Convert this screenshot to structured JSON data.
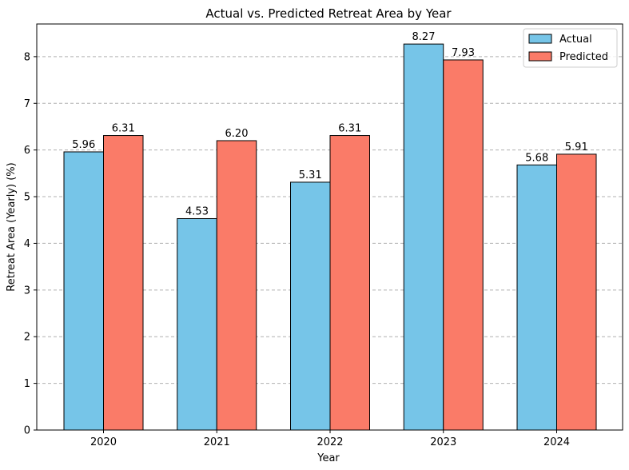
{
  "chart_data": {
    "type": "bar",
    "title": "Actual vs. Predicted Retreat Area by Year",
    "xlabel": "Year",
    "ylabel": "Retreat Area (Yearly) (%)",
    "categories": [
      "2020",
      "2021",
      "2022",
      "2023",
      "2024"
    ],
    "series": [
      {
        "name": "Actual",
        "values": [
          5.96,
          4.53,
          5.31,
          8.27,
          5.68
        ],
        "labels": [
          "5.96",
          "4.53",
          "5.31",
          "8.27",
          "5.68"
        ],
        "color": "#76c5e8"
      },
      {
        "name": "Predicted",
        "values": [
          6.31,
          6.2,
          6.31,
          7.93,
          5.91
        ],
        "labels": [
          "6.31",
          "6.20",
          "6.31",
          "7.93",
          "5.91"
        ],
        "color": "#fa7b68"
      }
    ],
    "ylim": [
      0,
      8.7
    ],
    "yticks": [
      "0",
      "1",
      "2",
      "3",
      "4",
      "5",
      "6",
      "7",
      "8"
    ],
    "grid": "y-dashed",
    "legend": "top-right"
  }
}
